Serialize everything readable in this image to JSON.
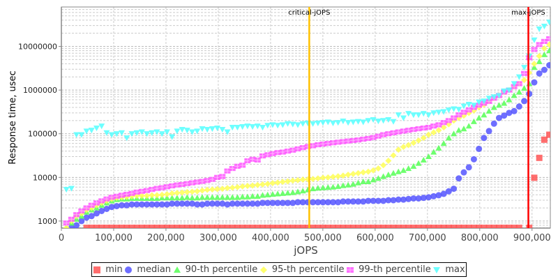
{
  "chart_data": {
    "type": "scatter",
    "title": "",
    "xlabel": "jOPS",
    "ylabel": "Response time, usec",
    "xlim": [
      0,
      935000
    ],
    "ylim": [
      690,
      80000000
    ],
    "yscale": "log",
    "grid": true,
    "legend_position": "bottom",
    "x_start": 9620,
    "x_step": 9620,
    "x_ticks": [
      0,
      100000,
      200000,
      300000,
      400000,
      500000,
      600000,
      700000,
      800000,
      900000
    ],
    "x_tick_labels": [
      "0",
      "100,000",
      "200,000",
      "300,000",
      "400,000",
      "500,000",
      "600,000",
      "700,000",
      "800,000",
      "900,000"
    ],
    "y_ticks": [
      1000,
      10000,
      100000,
      1000000,
      10000000
    ],
    "y_tick_labels": [
      "1000",
      "10000",
      "100000",
      "1000000",
      "10000000"
    ],
    "annotations": [
      {
        "label": "critical-jOPS",
        "x": 474000,
        "color": "#ffc000"
      },
      {
        "label": "max-jOPS",
        "x": 893000,
        "color": "#ff0000"
      }
    ],
    "series": [
      {
        "name": "min",
        "color": "#ff5555",
        "marker": "square",
        "values": [
          null,
          null,
          null,
          null,
          700,
          700,
          700,
          700,
          700,
          700,
          700,
          700,
          700,
          700,
          700,
          700,
          700,
          700,
          700,
          700,
          700,
          700,
          700,
          700,
          700,
          700,
          700,
          700,
          700,
          700,
          700,
          700,
          700,
          700,
          700,
          700,
          700,
          700,
          700,
          700,
          700,
          700,
          700,
          700,
          700,
          700,
          700,
          700,
          700,
          700,
          700,
          700,
          700,
          700,
          700,
          700,
          700,
          700,
          700,
          700,
          700,
          700,
          700,
          700,
          700,
          700,
          700,
          700,
          700,
          700,
          700,
          700,
          700,
          700,
          700,
          700,
          700,
          700,
          700,
          700,
          700,
          700,
          700,
          700,
          700,
          700,
          700,
          700,
          700,
          700,
          700,
          null,
          700,
          9800,
          28000,
          73000,
          95000
        ]
      },
      {
        "name": "median",
        "color": "#5555ff",
        "marker": "circle",
        "values": [
          600,
          700,
          800,
          1000,
          1200,
          1300,
          1500,
          1700,
          1900,
          2100,
          2200,
          2300,
          2300,
          2400,
          2400,
          2400,
          2400,
          2400,
          2400,
          2400,
          2400,
          2500,
          2500,
          2500,
          2500,
          2500,
          2400,
          2400,
          2500,
          2500,
          2500,
          2500,
          2400,
          2500,
          2500,
          2500,
          2500,
          2500,
          2500,
          2600,
          2600,
          2600,
          2600,
          2600,
          2600,
          2600,
          2700,
          2700,
          2700,
          2700,
          2700,
          2700,
          2700,
          2700,
          2700,
          2800,
          2800,
          2800,
          2800,
          2800,
          2900,
          2900,
          2900,
          2900,
          3000,
          3000,
          3100,
          3100,
          3200,
          3300,
          3300,
          3400,
          3500,
          3700,
          3900,
          4200,
          4800,
          5500,
          9500,
          13000,
          17000,
          26000,
          45000,
          80000,
          115000,
          170000,
          230000,
          260000,
          300000,
          330000,
          420000,
          560000,
          820000,
          1500000,
          2400000,
          2900000,
          3700000
        ]
      },
      {
        "name": "90-th percentile",
        "color": "#55ff55",
        "marker": "triangle",
        "values": [
          700,
          900,
          1100,
          1300,
          1600,
          1800,
          2000,
          2300,
          2600,
          2900,
          3100,
          3200,
          3200,
          3300,
          3300,
          3300,
          3300,
          3300,
          3300,
          3400,
          3400,
          3400,
          3400,
          3400,
          3500,
          3400,
          3400,
          3500,
          3500,
          3500,
          3500,
          3500,
          3500,
          3500,
          3500,
          3600,
          3600,
          3700,
          3700,
          3900,
          4000,
          4100,
          4200,
          4300,
          4400,
          4500,
          4700,
          4900,
          5200,
          5500,
          5700,
          5800,
          5900,
          6000,
          6200,
          6500,
          6700,
          7000,
          7500,
          8000,
          8000,
          8800,
          9500,
          10500,
          11500,
          12500,
          13500,
          14500,
          16000,
          18000,
          21000,
          25000,
          30000,
          38000,
          47000,
          60000,
          80000,
          100000,
          120000,
          130000,
          150000,
          190000,
          230000,
          270000,
          330000,
          400000,
          450000,
          500000,
          600000,
          750000,
          900000,
          1100000,
          1400000,
          3300000,
          4500000,
          6500000,
          8000000
        ]
      },
      {
        "name": "95-th percentile",
        "color": "#ffff55",
        "marker": "diamond",
        "values": [
          700,
          1000,
          1300,
          1500,
          1800,
          2000,
          2300,
          2600,
          2900,
          3200,
          3400,
          3500,
          3600,
          3700,
          3800,
          3800,
          3800,
          3900,
          3900,
          4000,
          4100,
          4300,
          4400,
          4500,
          4600,
          4700,
          4800,
          5000,
          5200,
          5300,
          5400,
          5500,
          5700,
          5800,
          6000,
          6200,
          6400,
          6500,
          6700,
          6900,
          7100,
          7400,
          7600,
          7900,
          8100,
          8400,
          8600,
          8900,
          9000,
          9200,
          9500,
          9800,
          10000,
          10300,
          10600,
          11000,
          11500,
          12000,
          12500,
          13000,
          13500,
          14500,
          16000,
          19000,
          24000,
          32000,
          43000,
          50000,
          55000,
          62000,
          70000,
          80000,
          95000,
          107000,
          120000,
          140000,
          165000,
          200000,
          230000,
          260000,
          300000,
          340000,
          400000,
          460000,
          550000,
          650000,
          750000,
          900000,
          1000000,
          1200000,
          1400000,
          1700000,
          2500000,
          4000000,
          6000000,
          9000000,
          11000000
        ]
      },
      {
        "name": "99-th percentile",
        "color": "#ff55ff",
        "marker": "square-cross",
        "values": [
          900,
          1100,
          1400,
          1700,
          2000,
          2300,
          2600,
          2900,
          3200,
          3500,
          3700,
          3900,
          4100,
          4300,
          4600,
          4800,
          5000,
          5300,
          5600,
          5800,
          6100,
          6400,
          6700,
          6900,
          7200,
          7500,
          7800,
          8100,
          8500,
          9000,
          10000,
          10500,
          14000,
          16000,
          18000,
          19000,
          24000,
          26000,
          25000,
          31000,
          33000,
          35000,
          37000,
          38000,
          40000,
          42000,
          45000,
          48000,
          51000,
          53000,
          56000,
          58000,
          60000,
          62000,
          64000,
          66000,
          68000,
          70000,
          72000,
          75000,
          78000,
          82000,
          88000,
          95000,
          100000,
          105000,
          110000,
          115000,
          120000,
          125000,
          130000,
          135000,
          140000,
          150000,
          160000,
          180000,
          200000,
          230000,
          270000,
          310000,
          350000,
          400000,
          450000,
          500000,
          550000,
          650000,
          750000,
          900000,
          1000000,
          1200000,
          1400000,
          2400000,
          5500000,
          8500000,
          11000000,
          13000000,
          15000000
        ]
      },
      {
        "name": "max",
        "color": "#55ffff",
        "marker": "triangle-down",
        "values": [
          5300,
          5600,
          95000,
          95000,
          115000,
          120000,
          135000,
          150000,
          105000,
          95000,
          100000,
          105000,
          80000,
          100000,
          105000,
          110000,
          100000,
          105000,
          110000,
          100000,
          110000,
          85000,
          115000,
          125000,
          120000,
          110000,
          115000,
          130000,
          125000,
          130000,
          135000,
          125000,
          110000,
          140000,
          140000,
          145000,
          150000,
          145000,
          150000,
          140000,
          155000,
          160000,
          155000,
          160000,
          170000,
          165000,
          160000,
          170000,
          175000,
          170000,
          175000,
          180000,
          185000,
          175000,
          180000,
          195000,
          180000,
          185000,
          190000,
          185000,
          200000,
          210000,
          195000,
          200000,
          210000,
          190000,
          270000,
          230000,
          290000,
          270000,
          270000,
          290000,
          270000,
          300000,
          310000,
          320000,
          350000,
          370000,
          360000,
          430000,
          470000,
          450000,
          530000,
          560000,
          650000,
          700000,
          750000,
          950000,
          1000000,
          1400000,
          2000000,
          3300000,
          6000000,
          14000000,
          25000000,
          29000000,
          36000000
        ]
      }
    ]
  }
}
